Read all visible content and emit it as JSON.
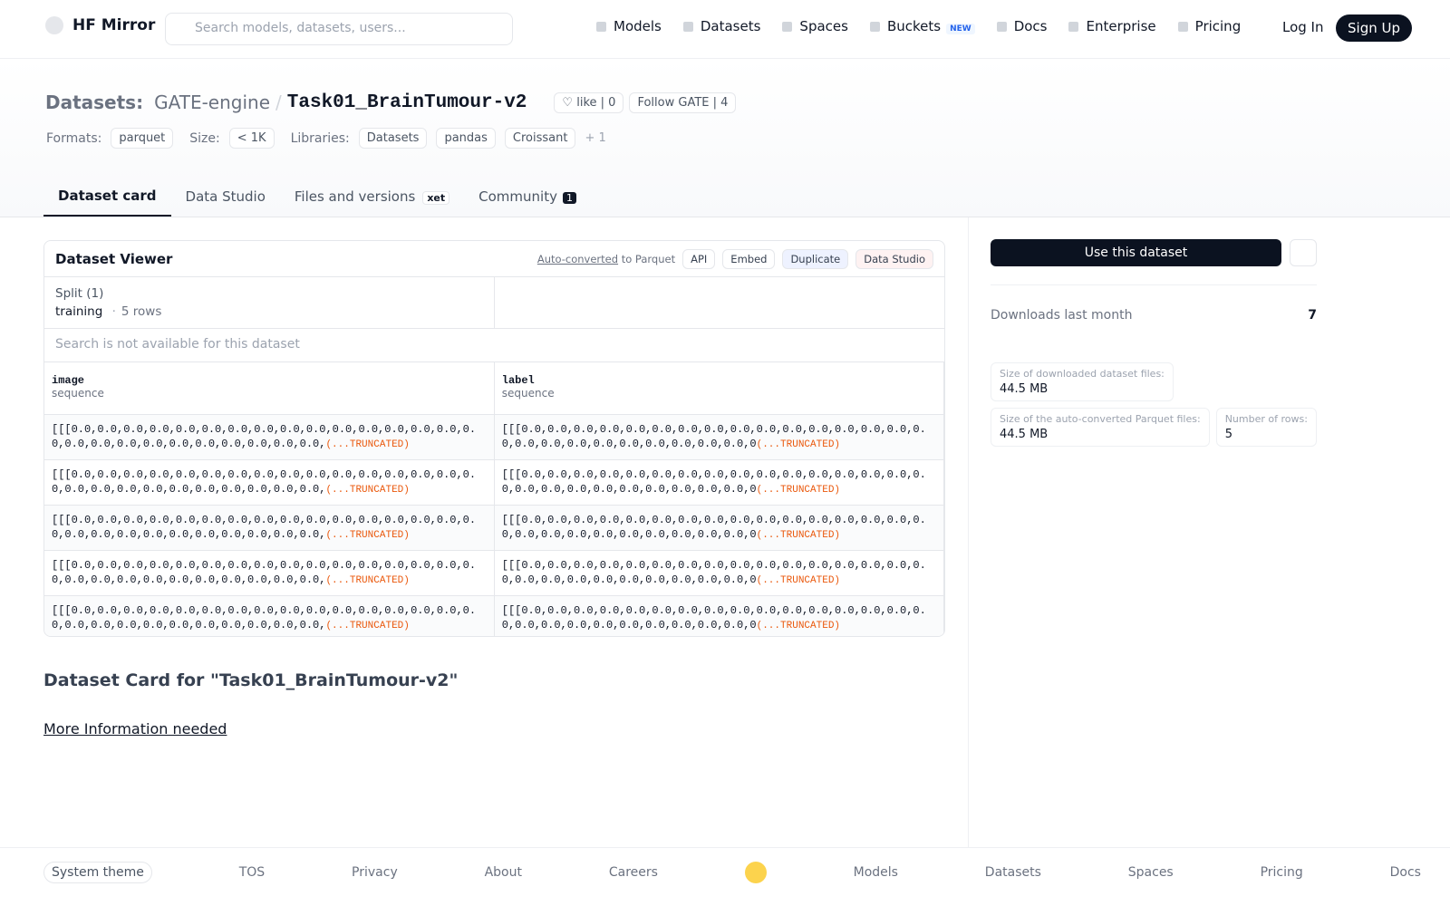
{
  "nav": {
    "brand": "HF Mirror",
    "search": "Search models, datasets, users...",
    "items": [
      "Models",
      "Datasets",
      "Spaces",
      "Buckets",
      "Docs",
      "Enterprise",
      "Pricing"
    ],
    "badge": "NEW",
    "login": "Log In",
    "signup": "Sign Up"
  },
  "repo": {
    "type": "Datasets:",
    "owner": "GATE-engine",
    "sep": "/",
    "name": "Task01_BrainTumour-v2",
    "like": "like",
    "likes": 0,
    "follow": "Follow",
    "org": "GATE",
    "followers": 4
  },
  "tags": {
    "formats_label": "Formats:",
    "formats": [
      "parquet"
    ],
    "size_label": "Size:",
    "size": "< 1K",
    "libraries_label": "Libraries:",
    "libraries": [
      "Datasets",
      "pandas",
      "Croissant"
    ],
    "more": "+ 1"
  },
  "tabs": {
    "items": [
      "Dataset card",
      "Data Studio",
      "Files and versions",
      "Community"
    ],
    "xet": "xet",
    "community_count": 1
  },
  "viewer": {
    "title": "Dataset Viewer",
    "auto": "Auto-converted",
    "to": "to Parquet",
    "actions": [
      "API",
      "Embed",
      "Duplicate",
      "Data Studio"
    ],
    "split": "Split (1)",
    "split_name": "training",
    "dot": "·",
    "rows_count": "5 rows",
    "search": "Search is not available for this dataset",
    "columns": [
      {
        "name": "image",
        "type": "sequence"
      },
      {
        "name": "label",
        "type": "sequence"
      }
    ],
    "truncated": "(...TRUNCATED)",
    "rows": [
      [
        "[[[0.0,0.0,0.0,0.0,0.0,0.0,0.0,0.0,0.0,0.0,0.0,0.0,0.0,0.0,0.0,0.0,0.0,0.0,0.0,0.0,0.0,0.0,0.0,0.0,0.0,0.0,",
        "[[[0.0,0.0,0.0,0.0,0.0,0.0,0.0,0.0,0.0,0.0,0.0,0.0,0.0,0.0,0.0,0.0,0.0,0.0,0.0,0.0,0.0,0.0,0.0,0.0,0.0,0"
      ],
      [
        "[[[0.0,0.0,0.0,0.0,0.0,0.0,0.0,0.0,0.0,0.0,0.0,0.0,0.0,0.0,0.0,0.0,0.0,0.0,0.0,0.0,0.0,0.0,0.0,0.0,0.0,0.0,",
        "[[[0.0,0.0,0.0,0.0,0.0,0.0,0.0,0.0,0.0,0.0,0.0,0.0,0.0,0.0,0.0,0.0,0.0,0.0,0.0,0.0,0.0,0.0,0.0,0.0,0.0,0"
      ],
      [
        "[[[0.0,0.0,0.0,0.0,0.0,0.0,0.0,0.0,0.0,0.0,0.0,0.0,0.0,0.0,0.0,0.0,0.0,0.0,0.0,0.0,0.0,0.0,0.0,0.0,0.0,0.0,",
        "[[[0.0,0.0,0.0,0.0,0.0,0.0,0.0,0.0,0.0,0.0,0.0,0.0,0.0,0.0,0.0,0.0,0.0,0.0,0.0,0.0,0.0,0.0,0.0,0.0,0.0,0"
      ],
      [
        "[[[0.0,0.0,0.0,0.0,0.0,0.0,0.0,0.0,0.0,0.0,0.0,0.0,0.0,0.0,0.0,0.0,0.0,0.0,0.0,0.0,0.0,0.0,0.0,0.0,0.0,0.0,",
        "[[[0.0,0.0,0.0,0.0,0.0,0.0,0.0,0.0,0.0,0.0,0.0,0.0,0.0,0.0,0.0,0.0,0.0,0.0,0.0,0.0,0.0,0.0,0.0,0.0,0.0,0"
      ],
      [
        "[[[0.0,0.0,0.0,0.0,0.0,0.0,0.0,0.0,0.0,0.0,0.0,0.0,0.0,0.0,0.0,0.0,0.0,0.0,0.0,0.0,0.0,0.0,0.0,0.0,0.0,0.0,",
        "[[[0.0,0.0,0.0,0.0,0.0,0.0,0.0,0.0,0.0,0.0,0.0,0.0,0.0,0.0,0.0,0.0,0.0,0.0,0.0,0.0,0.0,0.0,0.0,0.0,0.0,0"
      ]
    ]
  },
  "sidebar": {
    "use": "Use this dataset",
    "downloads_label": "Downloads last month",
    "downloads": 7,
    "stats": [
      {
        "label": "Size of downloaded dataset files:",
        "value": "44.5 MB"
      },
      {
        "label": "Size of the auto-converted Parquet files:",
        "value": "44.5 MB"
      },
      {
        "label": "Number of rows:",
        "value": 5
      }
    ]
  },
  "card": {
    "title": "Dataset Card for \"Task01_BrainTumour-v2\"",
    "link": "More Information needed"
  },
  "footer": {
    "theme": "System theme",
    "links": [
      "TOS",
      "Privacy",
      "About",
      "Careers",
      "Models",
      "Datasets",
      "Spaces",
      "Pricing",
      "Docs"
    ]
  }
}
